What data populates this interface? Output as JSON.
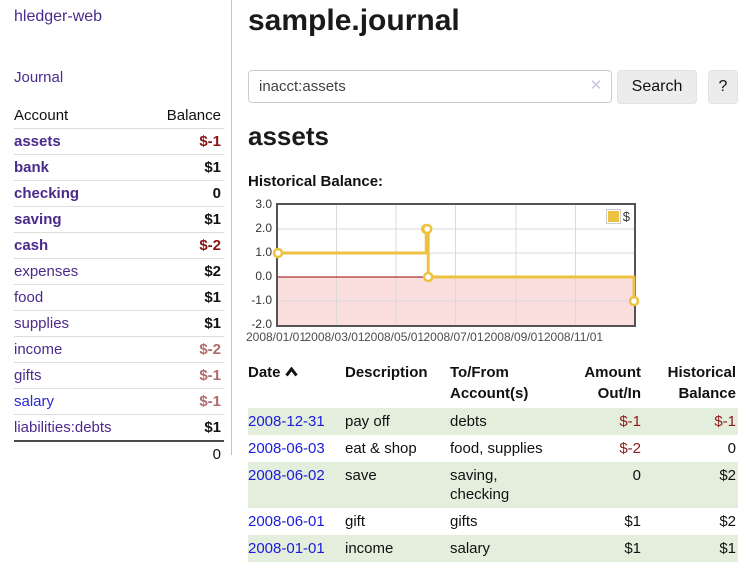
{
  "sidebar": {
    "brand": "hledger-web",
    "journal_link": "Journal",
    "accounts": {
      "headers": {
        "account": "Account",
        "balance": "Balance"
      },
      "rows": [
        {
          "name": "assets",
          "balance": "$-1"
        },
        {
          "name": "bank",
          "balance": "$1"
        },
        {
          "name": "checking",
          "balance": "0"
        },
        {
          "name": "saving",
          "balance": "$1"
        },
        {
          "name": "cash",
          "balance": "$-2"
        },
        {
          "name": "expenses",
          "balance": "$2"
        },
        {
          "name": "food",
          "balance": "$1"
        },
        {
          "name": "supplies",
          "balance": "$1"
        },
        {
          "name": "income",
          "balance": "$-2"
        },
        {
          "name": "gifts",
          "balance": "$-1"
        },
        {
          "name": "salary",
          "balance": "$-1"
        },
        {
          "name": "liabilities:debts",
          "balance": "$1"
        }
      ],
      "total": "0"
    }
  },
  "main": {
    "title": "sample.journal",
    "search": {
      "value": "inacct:assets",
      "clear_icon": "✕",
      "button": "Search",
      "help_button": "?"
    },
    "account_heading": "assets",
    "chart_label": "Historical Balance:"
  },
  "chart_data": {
    "type": "line",
    "step": true,
    "title": "Historical Balance:",
    "series": [
      {
        "name": "$",
        "color": "#edc240",
        "points": [
          [
            "2008-01-01",
            1
          ],
          [
            "2008-06-01",
            2
          ],
          [
            "2008-06-02",
            2
          ],
          [
            "2008-06-03",
            0
          ],
          [
            "2008-12-31",
            -1
          ]
        ]
      }
    ],
    "x_range": [
      "2008-01-01",
      "2008-12-31"
    ],
    "x_ticks": [
      "2008/01/01",
      "2008/03/01",
      "2008/05/01",
      "2008/07/01",
      "2008/09/01",
      "2008/11/01"
    ],
    "y_ticks": [
      3.0,
      2.0,
      1.0,
      0.0,
      -1.0,
      -2.0
    ],
    "ylim": [
      -2,
      3
    ],
    "grid": true,
    "legend": {
      "label": "$",
      "position": "top-right"
    },
    "negative_region_color": "#fbdfdf",
    "zero_line_color": "#9b0000"
  },
  "transactions": {
    "headers": {
      "date": "Date",
      "description": "Description",
      "accounts": "To/From Account(s)",
      "amount": "Amount Out/In",
      "balance": "Historical Balance"
    },
    "rows": [
      {
        "date": "2008-12-31",
        "description": "pay off",
        "accounts": "debts",
        "amount": "$-1",
        "balance": "$-1"
      },
      {
        "date": "2008-06-03",
        "description": "eat & shop",
        "accounts": "food, supplies",
        "amount": "$-2",
        "balance": "0"
      },
      {
        "date": "2008-06-02",
        "description": "save",
        "accounts": "saving, checking",
        "amount": "0",
        "balance": "$2"
      },
      {
        "date": "2008-06-01",
        "description": "gift",
        "accounts": "gifts",
        "amount": "$1",
        "balance": "$2"
      },
      {
        "date": "2008-01-01",
        "description": "income",
        "accounts": "salary",
        "amount": "$1",
        "balance": "$1"
      }
    ]
  },
  "colors": {
    "accent_purple": "#4a2b8c",
    "link_blue_date": "#1b1bd8",
    "link_blue_account": "#2a2ad4",
    "negative": "#8c1414",
    "negative_muted": "#b46a6a",
    "row_highlight_green": "#e4eedd",
    "chart_line": "#edc240",
    "chart_negative_fill": "#fbdfdf",
    "chart_zero_line": "#9b0000"
  }
}
